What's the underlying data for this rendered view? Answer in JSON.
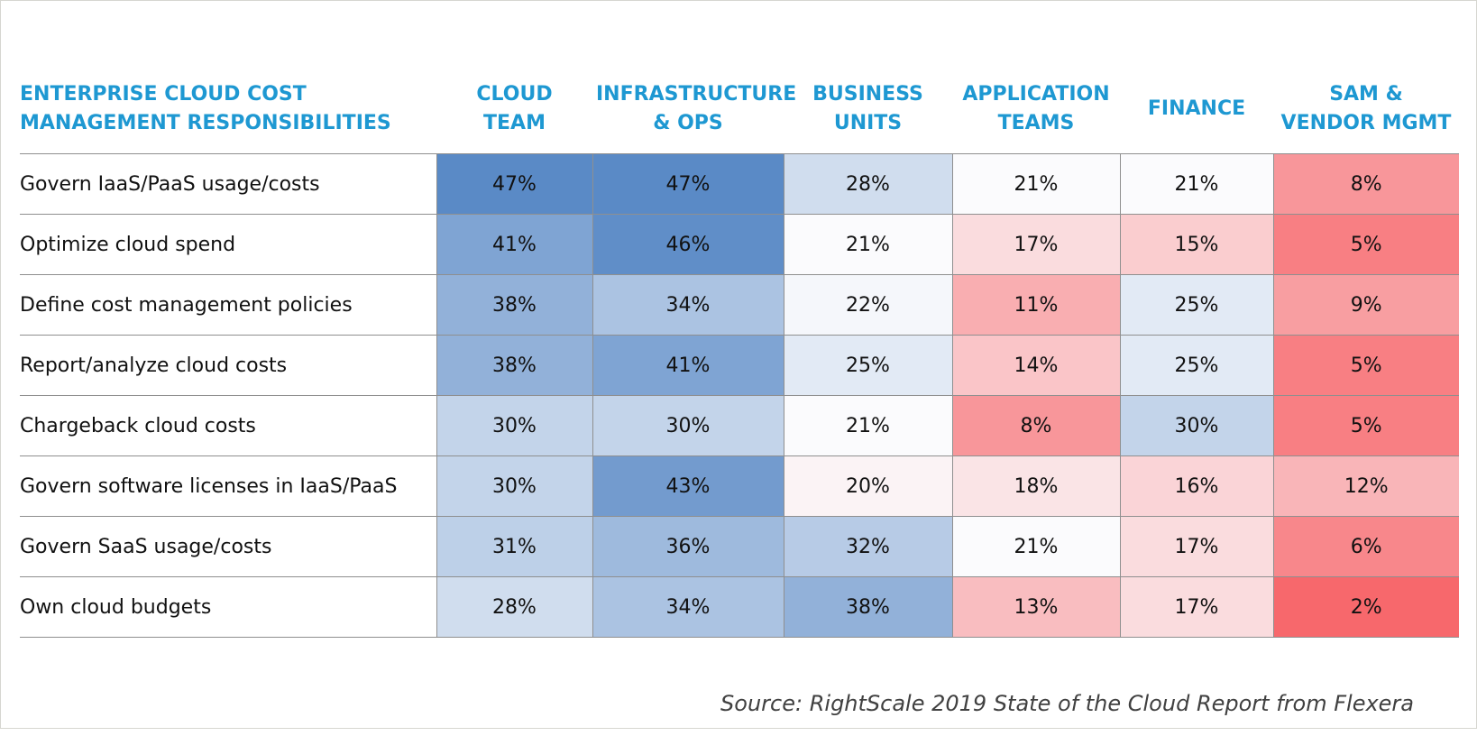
{
  "chart_data": {
    "type": "heatmap",
    "title": "ENTERPRISE CLOUD COST\nMANAGEMENT RESPONSIBILITIES",
    "columns": [
      "CLOUD\nTEAM",
      "INFRASTRUCTURE\n& OPS",
      "BUSINESS\nUNITS",
      "APPLICATION\nTEAMS",
      "FINANCE",
      "SAM &\nVENDOR MGMT"
    ],
    "rows": [
      "Govern IaaS/PaaS usage/costs",
      "Optimize cloud spend",
      "Define cost management policies",
      "Report/analyze cloud costs",
      "Chargeback cloud costs",
      "Govern software licenses in IaaS/PaaS",
      "Govern SaaS usage/costs",
      "Own cloud budgets"
    ],
    "values": [
      [
        47,
        47,
        28,
        21,
        21,
        8
      ],
      [
        41,
        46,
        21,
        17,
        15,
        5
      ],
      [
        38,
        34,
        22,
        11,
        25,
        9
      ],
      [
        38,
        41,
        25,
        14,
        25,
        5
      ],
      [
        30,
        30,
        21,
        8,
        30,
        5
      ],
      [
        30,
        43,
        20,
        18,
        16,
        12
      ],
      [
        31,
        36,
        32,
        21,
        17,
        6
      ],
      [
        28,
        34,
        38,
        13,
        17,
        2
      ]
    ],
    "unit": "%",
    "color_scale": {
      "low": "#f7686c",
      "mid": "#fbfbfd",
      "high": "#5a8ac6",
      "mid_value": 21
    }
  },
  "source": "Source: RightScale 2019 State of the Cloud Report from Flexera"
}
